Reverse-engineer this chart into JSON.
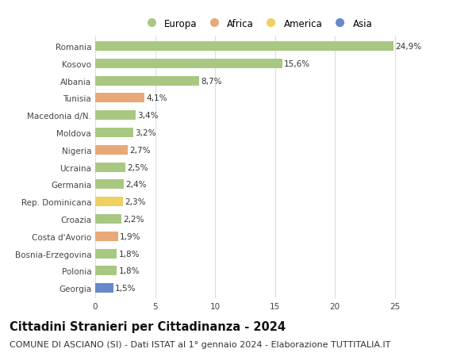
{
  "categories": [
    "Romania",
    "Kosovo",
    "Albania",
    "Tunisia",
    "Macedonia d/N.",
    "Moldova",
    "Nigeria",
    "Ucraina",
    "Germania",
    "Rep. Dominicana",
    "Croazia",
    "Costa d'Avorio",
    "Bosnia-Erzegovina",
    "Polonia",
    "Georgia"
  ],
  "values": [
    24.9,
    15.6,
    8.7,
    4.1,
    3.4,
    3.2,
    2.7,
    2.5,
    2.4,
    2.3,
    2.2,
    1.9,
    1.8,
    1.8,
    1.5
  ],
  "labels": [
    "24,9%",
    "15,6%",
    "8,7%",
    "4,1%",
    "3,4%",
    "3,2%",
    "2,7%",
    "2,5%",
    "2,4%",
    "2,3%",
    "2,2%",
    "1,9%",
    "1,8%",
    "1,8%",
    "1,5%"
  ],
  "continents": [
    "Europa",
    "Europa",
    "Europa",
    "Africa",
    "Europa",
    "Europa",
    "Africa",
    "Europa",
    "Europa",
    "America",
    "Europa",
    "Africa",
    "Europa",
    "Europa",
    "Asia"
  ],
  "colors": {
    "Europa": "#a8c882",
    "Africa": "#e8a878",
    "America": "#f0d060",
    "Asia": "#6888cc"
  },
  "xlim": [
    0,
    27
  ],
  "xticks": [
    0,
    5,
    10,
    15,
    20,
    25
  ],
  "title": "Cittadini Stranieri per Cittadinanza - 2024",
  "subtitle": "COMUNE DI ASCIANO (SI) - Dati ISTAT al 1° gennaio 2024 - Elaborazione TUTTITALIA.IT",
  "background_color": "#ffffff",
  "bar_height": 0.55,
  "title_fontsize": 10.5,
  "subtitle_fontsize": 8,
  "label_fontsize": 7.5,
  "tick_fontsize": 7.5,
  "legend_fontsize": 8.5
}
